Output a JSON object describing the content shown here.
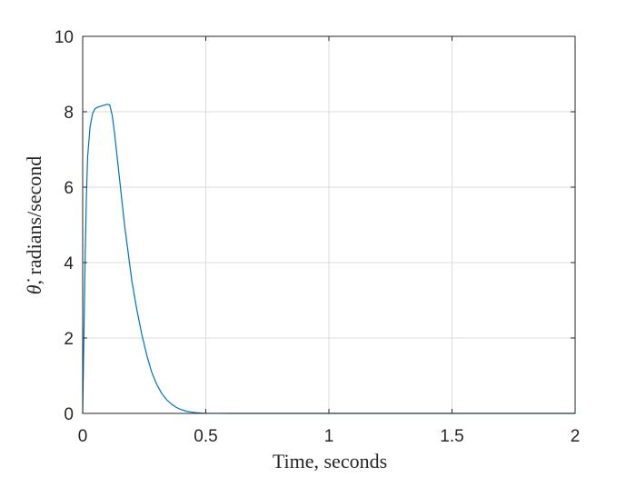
{
  "chart_data": {
    "type": "line",
    "xlabel": "Time, seconds",
    "ylabel_symbol": "θ̇",
    "ylabel_text": ", radians/second",
    "xlim": [
      0,
      2
    ],
    "ylim": [
      0,
      10
    ],
    "xticks": [
      0,
      0.5,
      1,
      1.5,
      2
    ],
    "xtick_labels": [
      "0",
      "0.5",
      "1",
      "1.5",
      "2"
    ],
    "yticks": [
      0,
      2,
      4,
      6,
      8,
      10
    ],
    "ytick_labels": [
      "0",
      "2",
      "4",
      "6",
      "8",
      "10"
    ],
    "grid": true,
    "colors": {
      "series": "#0072bd",
      "grid": "#dcdcdc",
      "axis": "#262626"
    },
    "series": [
      {
        "x": [
          0,
          0.005,
          0.01,
          0.015,
          0.02,
          0.03,
          0.04,
          0.05,
          0.06,
          0.07,
          0.08,
          0.09,
          0.1,
          0.11,
          0.12,
          0.13,
          0.14,
          0.15,
          0.16,
          0.17,
          0.18,
          0.19,
          0.2,
          0.22,
          0.24,
          0.26,
          0.28,
          0.3,
          0.32,
          0.34,
          0.36,
          0.38,
          0.4,
          0.42,
          0.44,
          0.46,
          0.48,
          0.5,
          0.55,
          0.6,
          0.7,
          0.8,
          1,
          1.5,
          2
        ],
        "y": [
          0,
          2.1,
          4.1,
          5.7,
          6.8,
          7.6,
          7.95,
          8.08,
          8.12,
          8.14,
          8.16,
          8.18,
          8.2,
          8.18,
          7.9,
          7.4,
          6.8,
          6.2,
          5.6,
          5.0,
          4.5,
          4.0,
          3.5,
          2.75,
          2.1,
          1.55,
          1.1,
          0.78,
          0.54,
          0.37,
          0.25,
          0.16,
          0.1,
          0.06,
          0.035,
          0.02,
          0.01,
          0.005,
          0.002,
          0.0005,
          0,
          0,
          0,
          0,
          0
        ]
      }
    ]
  }
}
